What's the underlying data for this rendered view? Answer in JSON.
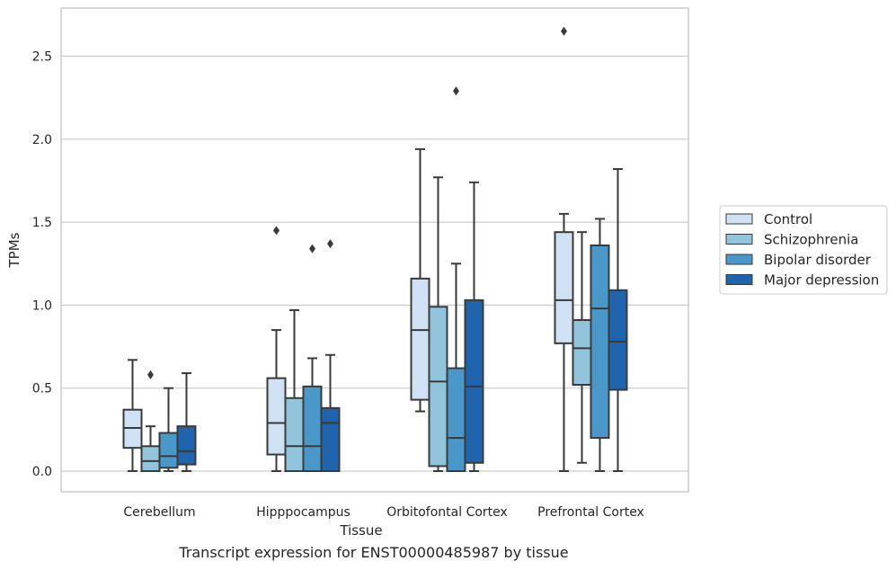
{
  "caption": "Transcript expression for ENST00000485987 by tissue",
  "chart_data": {
    "type": "box",
    "xlabel": "Tissue",
    "ylabel": "TPMs",
    "ylim": [
      -0.13,
      2.8
    ],
    "yticks": [
      0.0,
      0.5,
      1.0,
      1.5,
      2.0,
      2.5
    ],
    "ytick_labels": [
      "0.0",
      "0.5",
      "1.0",
      "1.5",
      "2.0",
      "2.5"
    ],
    "grid": "horizontal",
    "legend_position": "right",
    "categories": [
      "Cerebellum",
      "Hipppocampus",
      "Orbitofontal Cortex",
      "Prefrontal Cortex"
    ],
    "series": [
      {
        "name": "Control",
        "color": "#cfe1f2",
        "boxes": [
          {
            "min": 0.0,
            "q1": 0.14,
            "median": 0.26,
            "q3": 0.37,
            "max": 0.67,
            "outliers": []
          },
          {
            "min": 0.0,
            "q1": 0.1,
            "median": 0.29,
            "q3": 0.56,
            "max": 0.85,
            "outliers": [
              1.45
            ]
          },
          {
            "min": 0.36,
            "q1": 0.43,
            "median": 0.85,
            "q3": 1.16,
            "max": 1.94,
            "outliers": []
          },
          {
            "min": 0.0,
            "q1": 0.77,
            "median": 1.03,
            "q3": 1.44,
            "max": 1.55,
            "outliers": [
              2.65
            ]
          }
        ]
      },
      {
        "name": "Schizophrenia",
        "color": "#93c4de",
        "boxes": [
          {
            "min": 0.0,
            "q1": 0.0,
            "median": 0.06,
            "q3": 0.15,
            "max": 0.27,
            "outliers": [
              0.58
            ]
          },
          {
            "min": 0.0,
            "q1": 0.0,
            "median": 0.15,
            "q3": 0.44,
            "max": 0.97,
            "outliers": []
          },
          {
            "min": 0.0,
            "q1": 0.03,
            "median": 0.54,
            "q3": 0.99,
            "max": 1.77,
            "outliers": []
          },
          {
            "min": 0.05,
            "q1": 0.52,
            "median": 0.74,
            "q3": 0.91,
            "max": 1.44,
            "outliers": []
          }
        ]
      },
      {
        "name": "Bipolar disorder",
        "color": "#4a98c9",
        "boxes": [
          {
            "min": 0.0,
            "q1": 0.02,
            "median": 0.09,
            "q3": 0.23,
            "max": 0.5,
            "outliers": []
          },
          {
            "min": 0.0,
            "q1": 0.0,
            "median": 0.15,
            "q3": 0.51,
            "max": 0.68,
            "outliers": [
              1.34
            ]
          },
          {
            "min": 0.0,
            "q1": 0.0,
            "median": 0.2,
            "q3": 0.62,
            "max": 1.25,
            "outliers": [
              2.29
            ]
          },
          {
            "min": 0.0,
            "q1": 0.2,
            "median": 0.98,
            "q3": 1.36,
            "max": 1.52,
            "outliers": []
          }
        ]
      },
      {
        "name": "Major depression",
        "color": "#1f64ad",
        "boxes": [
          {
            "min": 0.0,
            "q1": 0.04,
            "median": 0.12,
            "q3": 0.27,
            "max": 0.59,
            "outliers": []
          },
          {
            "min": 0.0,
            "q1": 0.0,
            "median": 0.29,
            "q3": 0.38,
            "max": 0.7,
            "outliers": [
              1.37
            ]
          },
          {
            "min": 0.0,
            "q1": 0.05,
            "median": 0.51,
            "q3": 1.03,
            "max": 1.74,
            "outliers": []
          },
          {
            "min": 0.0,
            "q1": 0.49,
            "median": 0.78,
            "q3": 1.09,
            "max": 1.82,
            "outliers": []
          }
        ]
      }
    ]
  }
}
